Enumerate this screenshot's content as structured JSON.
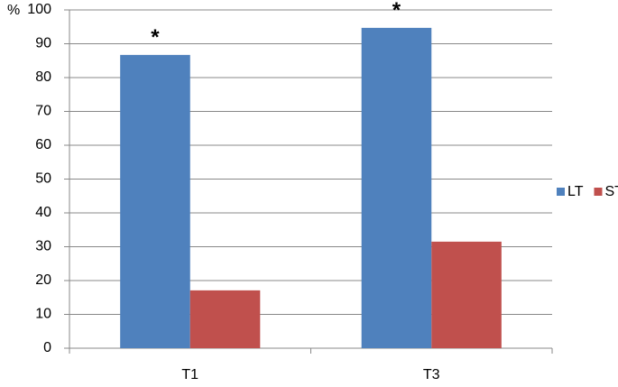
{
  "chart_data": {
    "type": "bar",
    "ylabel": "%",
    "categories": [
      "T1",
      "T3"
    ],
    "series": [
      {
        "name": "LT",
        "color": "#4f81bd",
        "values": [
          86.7,
          94.7
        ]
      },
      {
        "name": "ST",
        "color": "#c0504d",
        "values": [
          17.1,
          31.5
        ]
      }
    ],
    "annotations": [
      "*",
      "*"
    ],
    "ylim": [
      0,
      100
    ],
    "yticks": [
      0,
      10,
      20,
      30,
      40,
      50,
      60,
      70,
      80,
      90,
      100
    ],
    "grid": true,
    "legend": "right"
  }
}
